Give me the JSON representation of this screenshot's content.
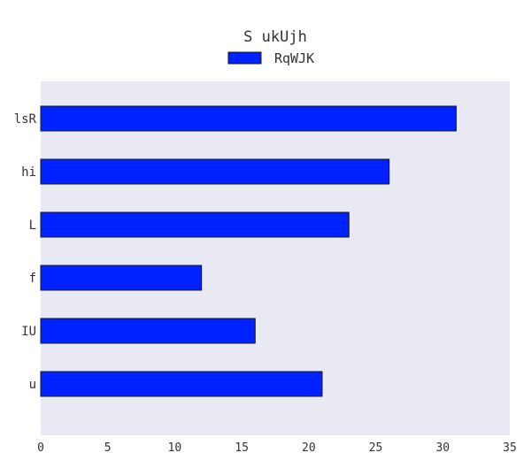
{
  "chart_data": {
    "type": "bar",
    "orientation": "horizontal",
    "title": "S ukUjh",
    "xlabel": "",
    "ylabel": "",
    "categories": [
      "lsR",
      "hi",
      "L",
      "f",
      "IU",
      "u"
    ],
    "series": [
      {
        "name": "RqWJK",
        "values": [
          31,
          26,
          23,
          12,
          16,
          21
        ]
      }
    ],
    "xlim": [
      0,
      35
    ],
    "xticks": [
      "0",
      "5",
      "10",
      "15",
      "20",
      "25",
      "30",
      "35"
    ],
    "grid": false,
    "legend_position": "top-center",
    "colors": {
      "bar": "#0022ff",
      "bar_edge": "#1a1a1a",
      "plot_background": "#e9e9f3"
    }
  }
}
